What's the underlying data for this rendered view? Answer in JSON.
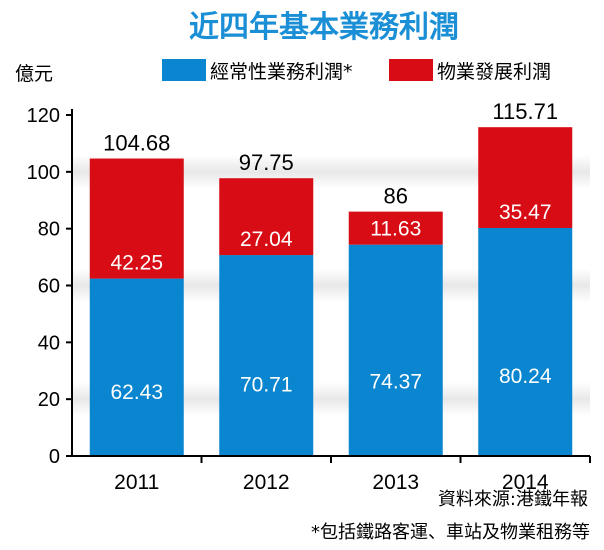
{
  "title": "近四年基本業務利潤",
  "source": "資料來源:港鐵年報",
  "footnote": "*包括鐵路客運、車站及物業租務等",
  "colors": {
    "recurring": "#0a85cf",
    "property": "#d80c14",
    "title": "#1a8fd6",
    "band": "#e8e8e8"
  },
  "chart_data": {
    "type": "bar",
    "stacked": true,
    "categories": [
      "2011",
      "2012",
      "2013",
      "2014"
    ],
    "series": [
      {
        "name": "經常性業務利潤*",
        "values": [
          62.43,
          70.71,
          74.37,
          80.24
        ]
      },
      {
        "name": "物業發展利潤",
        "values": [
          42.25,
          27.04,
          11.63,
          35.47
        ]
      }
    ],
    "totals": [
      "104.68",
      "97.75",
      "86",
      "115.71"
    ],
    "ylabel": "億元",
    "ylim": [
      0,
      120
    ],
    "yticks": [
      "0",
      "20",
      "40",
      "60",
      "80",
      "100",
      "120"
    ],
    "legend_position": "top",
    "grid": false
  }
}
